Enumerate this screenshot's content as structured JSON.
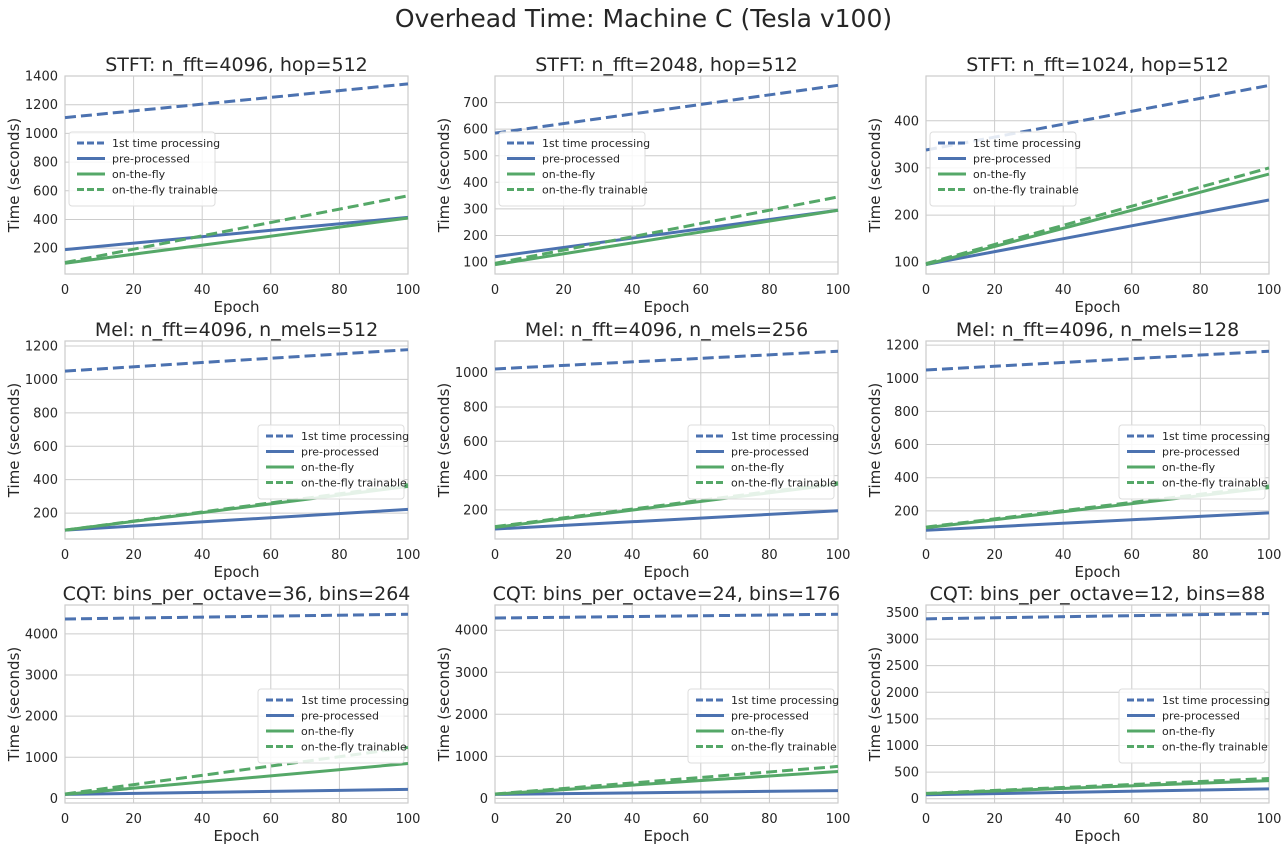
{
  "figure": {
    "title": "Overhead Time: Machine C (Tesla v100)"
  },
  "colors": {
    "blue": "#4c72b0",
    "green": "#55a868",
    "grid": "#cccccc",
    "frame": "#cccccc"
  },
  "chart_data": [
    {
      "type": "line",
      "title": "STFT: n_fft=4096, hop=512",
      "xlabel": "Epoch",
      "ylabel": "Time (seconds)",
      "xlim": [
        0,
        100
      ],
      "ylim": [
        20,
        1400
      ],
      "xticks": [
        0,
        20,
        40,
        60,
        80,
        100
      ],
      "yticks": [
        200,
        400,
        600,
        800,
        1000,
        1200,
        1400
      ],
      "grid": true,
      "legend_position": "center-left",
      "series": [
        {
          "name": "1st time processing",
          "color": "blue",
          "dash": true,
          "x": [
            0,
            100
          ],
          "y": [
            1110,
            1345
          ]
        },
        {
          "name": "pre-processed",
          "color": "blue",
          "dash": false,
          "x": [
            0,
            100
          ],
          "y": [
            190,
            415
          ]
        },
        {
          "name": "on-the-fly",
          "color": "green",
          "dash": false,
          "x": [
            0,
            100
          ],
          "y": [
            95,
            410
          ]
        },
        {
          "name": "on-the-fly trainable",
          "color": "green",
          "dash": true,
          "x": [
            0,
            100
          ],
          "y": [
            100,
            565
          ]
        }
      ]
    },
    {
      "type": "line",
      "title": "STFT: n_fft=2048, hop=512",
      "xlabel": "Epoch",
      "ylabel": "Time (seconds)",
      "xlim": [
        0,
        100
      ],
      "ylim": [
        55,
        800
      ],
      "xticks": [
        0,
        20,
        40,
        60,
        80,
        100
      ],
      "yticks": [
        100,
        200,
        300,
        400,
        500,
        600,
        700
      ],
      "grid": true,
      "legend_position": "center-left",
      "series": [
        {
          "name": "1st time processing",
          "color": "blue",
          "dash": true,
          "x": [
            0,
            100
          ],
          "y": [
            585,
            765
          ]
        },
        {
          "name": "pre-processed",
          "color": "blue",
          "dash": false,
          "x": [
            0,
            100
          ],
          "y": [
            120,
            295
          ]
        },
        {
          "name": "on-the-fly",
          "color": "green",
          "dash": false,
          "x": [
            0,
            100
          ],
          "y": [
            90,
            295
          ]
        },
        {
          "name": "on-the-fly trainable",
          "color": "green",
          "dash": true,
          "x": [
            0,
            100
          ],
          "y": [
            95,
            345
          ]
        }
      ]
    },
    {
      "type": "line",
      "title": "STFT: n_fft=1024, hop=512",
      "xlabel": "Epoch",
      "ylabel": "Time (seconds)",
      "xlim": [
        0,
        100
      ],
      "ylim": [
        75,
        495
      ],
      "xticks": [
        0,
        20,
        40,
        60,
        80,
        100
      ],
      "yticks": [
        100,
        200,
        300,
        400
      ],
      "grid": true,
      "legend_position": "center-left",
      "series": [
        {
          "name": "1st time processing",
          "color": "blue",
          "dash": true,
          "x": [
            0,
            100
          ],
          "y": [
            338,
            475
          ]
        },
        {
          "name": "pre-processed",
          "color": "blue",
          "dash": false,
          "x": [
            0,
            100
          ],
          "y": [
            95,
            232
          ]
        },
        {
          "name": "on-the-fly",
          "color": "green",
          "dash": false,
          "x": [
            0,
            100
          ],
          "y": [
            95,
            287
          ]
        },
        {
          "name": "on-the-fly trainable",
          "color": "green",
          "dash": true,
          "x": [
            0,
            100
          ],
          "y": [
            97,
            300
          ]
        }
      ]
    },
    {
      "type": "line",
      "title": "Mel: n_fft=4096, n_mels=512",
      "xlabel": "Epoch",
      "ylabel": "Time (seconds)",
      "xlim": [
        0,
        100
      ],
      "ylim": [
        45,
        1230
      ],
      "xticks": [
        0,
        20,
        40,
        60,
        80,
        100
      ],
      "yticks": [
        200,
        400,
        600,
        800,
        1000,
        1200
      ],
      "grid": true,
      "legend_position": "center-right",
      "series": [
        {
          "name": "1st time processing",
          "color": "blue",
          "dash": true,
          "x": [
            0,
            100
          ],
          "y": [
            1050,
            1178
          ]
        },
        {
          "name": "pre-processed",
          "color": "blue",
          "dash": false,
          "x": [
            0,
            100
          ],
          "y": [
            98,
            222
          ]
        },
        {
          "name": "on-the-fly",
          "color": "green",
          "dash": false,
          "x": [
            0,
            100
          ],
          "y": [
            98,
            360
          ]
        },
        {
          "name": "on-the-fly trainable",
          "color": "green",
          "dash": true,
          "x": [
            0,
            100
          ],
          "y": [
            98,
            370
          ]
        }
      ]
    },
    {
      "type": "line",
      "title": "Mel: n_fft=4096, n_mels=256",
      "xlabel": "Epoch",
      "ylabel": "Time (seconds)",
      "xlim": [
        0,
        100
      ],
      "ylim": [
        30,
        1185
      ],
      "xticks": [
        0,
        20,
        40,
        60,
        80,
        100
      ],
      "yticks": [
        200,
        400,
        600,
        800,
        1000
      ],
      "grid": true,
      "legend_position": "center-right",
      "series": [
        {
          "name": "1st time processing",
          "color": "blue",
          "dash": true,
          "x": [
            0,
            100
          ],
          "y": [
            1022,
            1125
          ]
        },
        {
          "name": "pre-processed",
          "color": "blue",
          "dash": false,
          "x": [
            0,
            100
          ],
          "y": [
            88,
            195
          ]
        },
        {
          "name": "on-the-fly",
          "color": "green",
          "dash": false,
          "x": [
            0,
            100
          ],
          "y": [
            98,
            350
          ]
        },
        {
          "name": "on-the-fly trainable",
          "color": "green",
          "dash": true,
          "x": [
            0,
            100
          ],
          "y": [
            102,
            358
          ]
        }
      ]
    },
    {
      "type": "line",
      "title": "Mel: n_fft=4096, n_mels=128",
      "xlabel": "Epoch",
      "ylabel": "Time (seconds)",
      "xlim": [
        0,
        100
      ],
      "ylim": [
        30,
        1225
      ],
      "xticks": [
        0,
        20,
        40,
        60,
        80,
        100
      ],
      "yticks": [
        200,
        400,
        600,
        800,
        1000,
        1200
      ],
      "grid": true,
      "legend_position": "center-right",
      "series": [
        {
          "name": "1st time processing",
          "color": "blue",
          "dash": true,
          "x": [
            0,
            100
          ],
          "y": [
            1050,
            1163
          ]
        },
        {
          "name": "pre-processed",
          "color": "blue",
          "dash": false,
          "x": [
            0,
            100
          ],
          "y": [
            83,
            188
          ]
        },
        {
          "name": "on-the-fly",
          "color": "green",
          "dash": false,
          "x": [
            0,
            100
          ],
          "y": [
            98,
            340
          ]
        },
        {
          "name": "on-the-fly trainable",
          "color": "green",
          "dash": true,
          "x": [
            0,
            100
          ],
          "y": [
            102,
            350
          ]
        }
      ]
    },
    {
      "type": "line",
      "title": "CQT: bins_per_octave=36, bins=264",
      "xlabel": "Epoch",
      "ylabel": "Time (seconds)",
      "xlim": [
        0,
        100
      ],
      "ylim": [
        -110,
        4700
      ],
      "xticks": [
        0,
        20,
        40,
        60,
        80,
        100
      ],
      "yticks": [
        0,
        1000,
        2000,
        3000,
        4000
      ],
      "grid": true,
      "legend_position": "center-right",
      "series": [
        {
          "name": "1st time processing",
          "color": "blue",
          "dash": true,
          "x": [
            0,
            100
          ],
          "y": [
            4360,
            4475
          ]
        },
        {
          "name": "pre-processed",
          "color": "blue",
          "dash": false,
          "x": [
            0,
            100
          ],
          "y": [
            100,
            220
          ]
        },
        {
          "name": "on-the-fly",
          "color": "green",
          "dash": false,
          "x": [
            0,
            100
          ],
          "y": [
            100,
            850
          ]
        },
        {
          "name": "on-the-fly trainable",
          "color": "green",
          "dash": true,
          "x": [
            0,
            100
          ],
          "y": [
            110,
            1240
          ]
        }
      ]
    },
    {
      "type": "line",
      "title": "CQT: bins_per_octave=24, bins=176",
      "xlabel": "Epoch",
      "ylabel": "Time (seconds)",
      "xlim": [
        0,
        100
      ],
      "ylim": [
        -110,
        4600
      ],
      "xticks": [
        0,
        20,
        40,
        60,
        80,
        100
      ],
      "yticks": [
        0,
        1000,
        2000,
        3000,
        4000
      ],
      "grid": true,
      "legend_position": "center-right",
      "series": [
        {
          "name": "1st time processing",
          "color": "blue",
          "dash": true,
          "x": [
            0,
            100
          ],
          "y": [
            4290,
            4380
          ]
        },
        {
          "name": "pre-processed",
          "color": "blue",
          "dash": false,
          "x": [
            0,
            100
          ],
          "y": [
            95,
            185
          ]
        },
        {
          "name": "on-the-fly",
          "color": "green",
          "dash": false,
          "x": [
            0,
            100
          ],
          "y": [
            100,
            640
          ]
        },
        {
          "name": "on-the-fly trainable",
          "color": "green",
          "dash": true,
          "x": [
            0,
            100
          ],
          "y": [
            105,
            760
          ]
        }
      ]
    },
    {
      "type": "line",
      "title": "CQT: bins_per_octave=12, bins=88",
      "xlabel": "Epoch",
      "ylabel": "Time (seconds)",
      "xlim": [
        0,
        100
      ],
      "ylim": [
        -80,
        3640
      ],
      "xticks": [
        0,
        20,
        40,
        60,
        80,
        100
      ],
      "yticks": [
        0,
        500,
        1000,
        1500,
        2000,
        2500,
        3000,
        3500
      ],
      "grid": true,
      "legend_position": "center-right",
      "series": [
        {
          "name": "1st time processing",
          "color": "blue",
          "dash": true,
          "x": [
            0,
            100
          ],
          "y": [
            3380,
            3480
          ]
        },
        {
          "name": "pre-processed",
          "color": "blue",
          "dash": false,
          "x": [
            0,
            100
          ],
          "y": [
            75,
            185
          ]
        },
        {
          "name": "on-the-fly",
          "color": "green",
          "dash": false,
          "x": [
            0,
            100
          ],
          "y": [
            95,
            340
          ]
        },
        {
          "name": "on-the-fly trainable",
          "color": "green",
          "dash": true,
          "x": [
            0,
            100
          ],
          "y": [
            100,
            380
          ]
        }
      ]
    }
  ]
}
